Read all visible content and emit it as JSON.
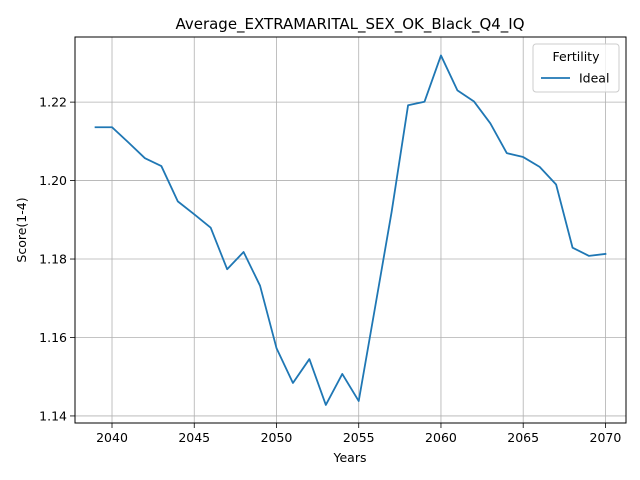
{
  "chart_data": {
    "type": "line",
    "title": "Average_EXTRAMARITAL_SEX_OK_Black_Q4_IQ",
    "xlabel": "Years",
    "ylabel": "Score(1-4)",
    "xlim": [
      2037.75,
      2071.25
    ],
    "ylim": [
      1.1382,
      1.2366
    ],
    "xticks": [
      2040,
      2045,
      2050,
      2055,
      2060,
      2065,
      2070
    ],
    "yticks": [
      1.14,
      1.16,
      1.18,
      1.2,
      1.22
    ],
    "ytick_labels": [
      "1.14",
      "1.16",
      "1.18",
      "1.20",
      "1.22"
    ],
    "grid": true,
    "legend": {
      "title": "Fertility",
      "placement": "top-right"
    },
    "series": [
      {
        "name": "Ideal",
        "color": "#1f77b4",
        "x": [
          2039,
          2040,
          2041,
          2042,
          2043,
          2044,
          2045,
          2046,
          2047,
          2048,
          2049,
          2050,
          2051,
          2052,
          2053,
          2054,
          2055,
          2056,
          2057,
          2058,
          2059,
          2060,
          2061,
          2062,
          2063,
          2064,
          2065,
          2066,
          2067,
          2068,
          2069,
          2070
        ],
        "y": [
          1.2136,
          1.2136,
          1.2097,
          1.2057,
          1.2037,
          1.1947,
          1.1914,
          1.188,
          1.1774,
          1.1818,
          1.1732,
          1.1573,
          1.1484,
          1.1545,
          1.1428,
          1.1507,
          1.1438,
          1.1678,
          1.192,
          1.2192,
          1.2201,
          1.2319,
          1.223,
          1.2202,
          1.2146,
          1.207,
          1.206,
          1.2035,
          1.199,
          1.1829,
          1.1808,
          1.1813
        ]
      }
    ]
  }
}
